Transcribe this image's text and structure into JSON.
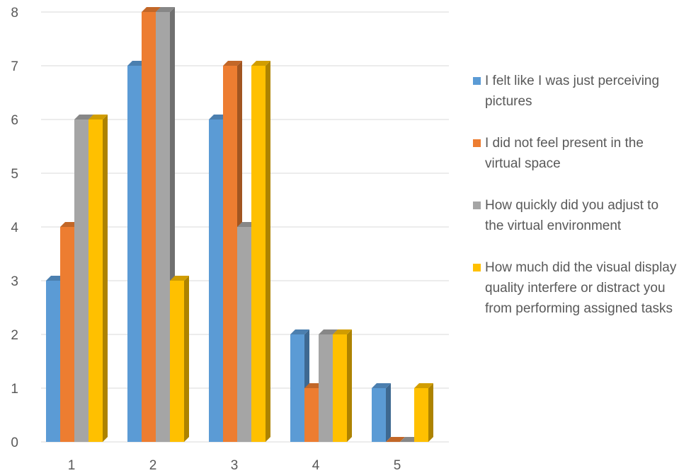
{
  "chart_data": {
    "type": "bar",
    "categories": [
      "1",
      "2",
      "3",
      "4",
      "5"
    ],
    "series": [
      {
        "name": "I felt like I was just perceiving pictures",
        "color": "#5B9BD5",
        "values": [
          3,
          7,
          6,
          2,
          1
        ]
      },
      {
        "name": "I did not feel present in the virtual space",
        "color": "#ED7D31",
        "values": [
          4,
          8,
          7,
          1,
          0
        ]
      },
      {
        "name": "How quickly did you adjust to the virtual environment",
        "color": "#A5A5A5",
        "values": [
          6,
          8,
          4,
          2,
          0
        ]
      },
      {
        "name": "How much did the visual display quality interfere or distract you from performing assigned tasks",
        "color": "#FFC000",
        "values": [
          6,
          3,
          7,
          2,
          1
        ]
      }
    ],
    "ylim": [
      0,
      8
    ],
    "yticks": [
      "0",
      "1",
      "2",
      "3",
      "4",
      "5",
      "6",
      "7",
      "8"
    ],
    "grid": true,
    "legend_position": "right",
    "style": "3d-clustered-column"
  }
}
